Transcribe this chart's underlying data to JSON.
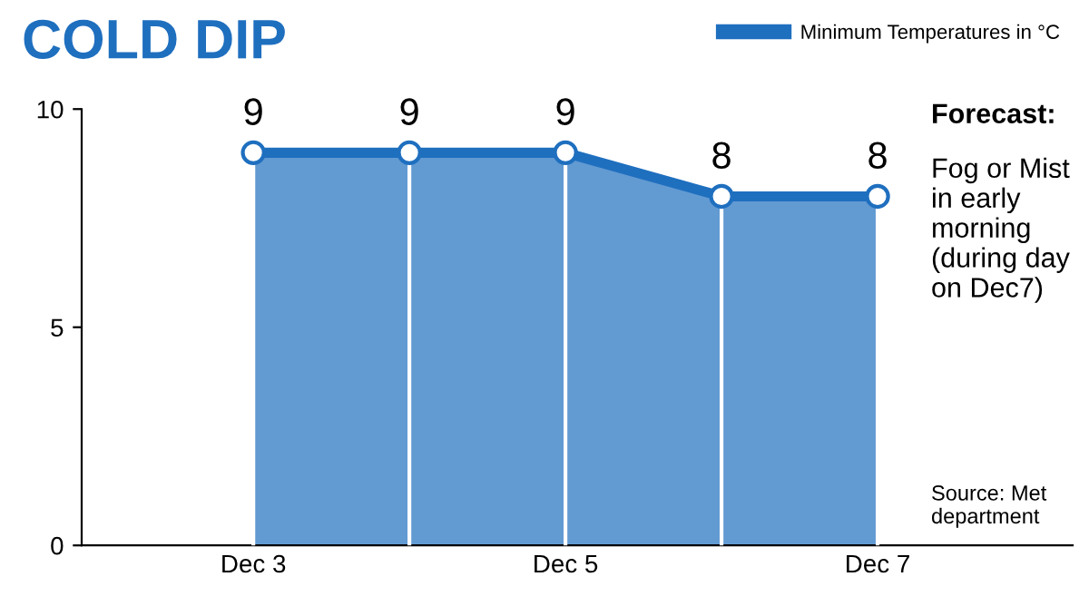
{
  "chart_data": {
    "type": "area",
    "title": "COLD DIP",
    "categories": [
      "Dec 3",
      null,
      "Dec 5",
      null,
      "Dec 7"
    ],
    "series": [
      {
        "name": "Minimum Temperatures in °C",
        "color": "#1f6fbf",
        "values": [
          9,
          9,
          9,
          8,
          8
        ]
      }
    ],
    "ylim": [
      0,
      10
    ],
    "yticks": [
      0,
      5,
      10
    ],
    "grid": "x",
    "legend": "top right",
    "marker": "circle",
    "data_labels": true,
    "annotations": [
      "Forecast:",
      "Fog or Mist in early morning (during day on Dec7)",
      "Source: Met department"
    ]
  }
}
